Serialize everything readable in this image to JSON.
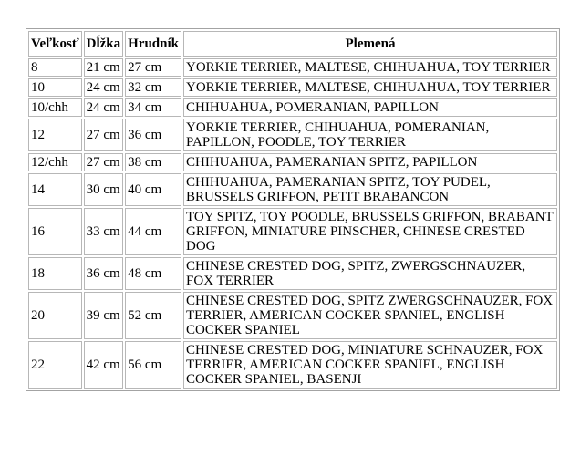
{
  "page": {
    "background_color": "#ffffff",
    "text_color": "#000000",
    "cell_border_color": "#b7b7b7",
    "outer_border_color": "#a3a3a3"
  },
  "table": {
    "columns": [
      {
        "key": "size",
        "label": "Veľkosť"
      },
      {
        "key": "length",
        "label": "Dĺžka"
      },
      {
        "key": "chest",
        "label": "Hrudník"
      },
      {
        "key": "breeds",
        "label": "Plemená"
      }
    ],
    "rows": [
      {
        "size": "8",
        "length": "21 cm",
        "chest": "27 cm",
        "breeds": "YORKIE TERRIER, MALTESE, CHIHUAHUA, TOY TERRIER"
      },
      {
        "size": "10",
        "length": "24 cm",
        "chest": "32 cm",
        "breeds": "YORKIE TERRIER, MALTESE, CHIHUAHUA, TOY TERRIER"
      },
      {
        "size": "10/chh",
        "length": "24 cm",
        "chest": "34 cm",
        "breeds": "CHIHUAHUA, POMERANIAN, PAPILLON"
      },
      {
        "size": "12",
        "length": "27 cm",
        "chest": "36 cm",
        "breeds": "YORKIE TERRIER, CHIHUAHUA, POMERANIAN, PAPILLON, POODLE, TOY TERRIER"
      },
      {
        "size": "12/chh",
        "length": "27 cm",
        "chest": "38 cm",
        "breeds": "CHIHUAHUA, PAMERANIAN SPITZ, PAPILLON"
      },
      {
        "size": "14",
        "length": "30 cm",
        "chest": "40 cm",
        "breeds": "CHIHUAHUA, PAMERANIAN SPITZ, TOY PUDEL, BRUSSELS GRIFFON, PETIT BRABANCON"
      },
      {
        "size": "16",
        "length": "33 cm",
        "chest": "44 cm",
        "breeds": "TOY SPITZ, TOY POODLE, BRUSSELS GRIFFON, BRABANT GRIFFON, MINIATURE PINSCHER, CHINESE CRESTED DOG"
      },
      {
        "size": "18",
        "length": "36 cm",
        "chest": "48 cm",
        "breeds": "CHINESE CRESTED DOG, SPITZ, ZWERGSCHNAUZER, FOX TERRIER"
      },
      {
        "size": "20",
        "length": "39 cm",
        "chest": "52 cm",
        "breeds": "CHINESE CRESTED DOG, SPITZ ZWERGSCHNAUZER, FOX TERRIER, AMERICAN COCKER SPANIEL, ENGLISH COCKER SPANIEL"
      },
      {
        "size": "22",
        "length": "42 cm",
        "chest": "56 cm",
        "breeds": "CHINESE CRESTED DOG, MINIATURE SCHNAUZER, FOX TERRIER, AMERICAN COCKER SPANIEL, ENGLISH COCKER SPANIEL, BASENJI"
      }
    ]
  }
}
